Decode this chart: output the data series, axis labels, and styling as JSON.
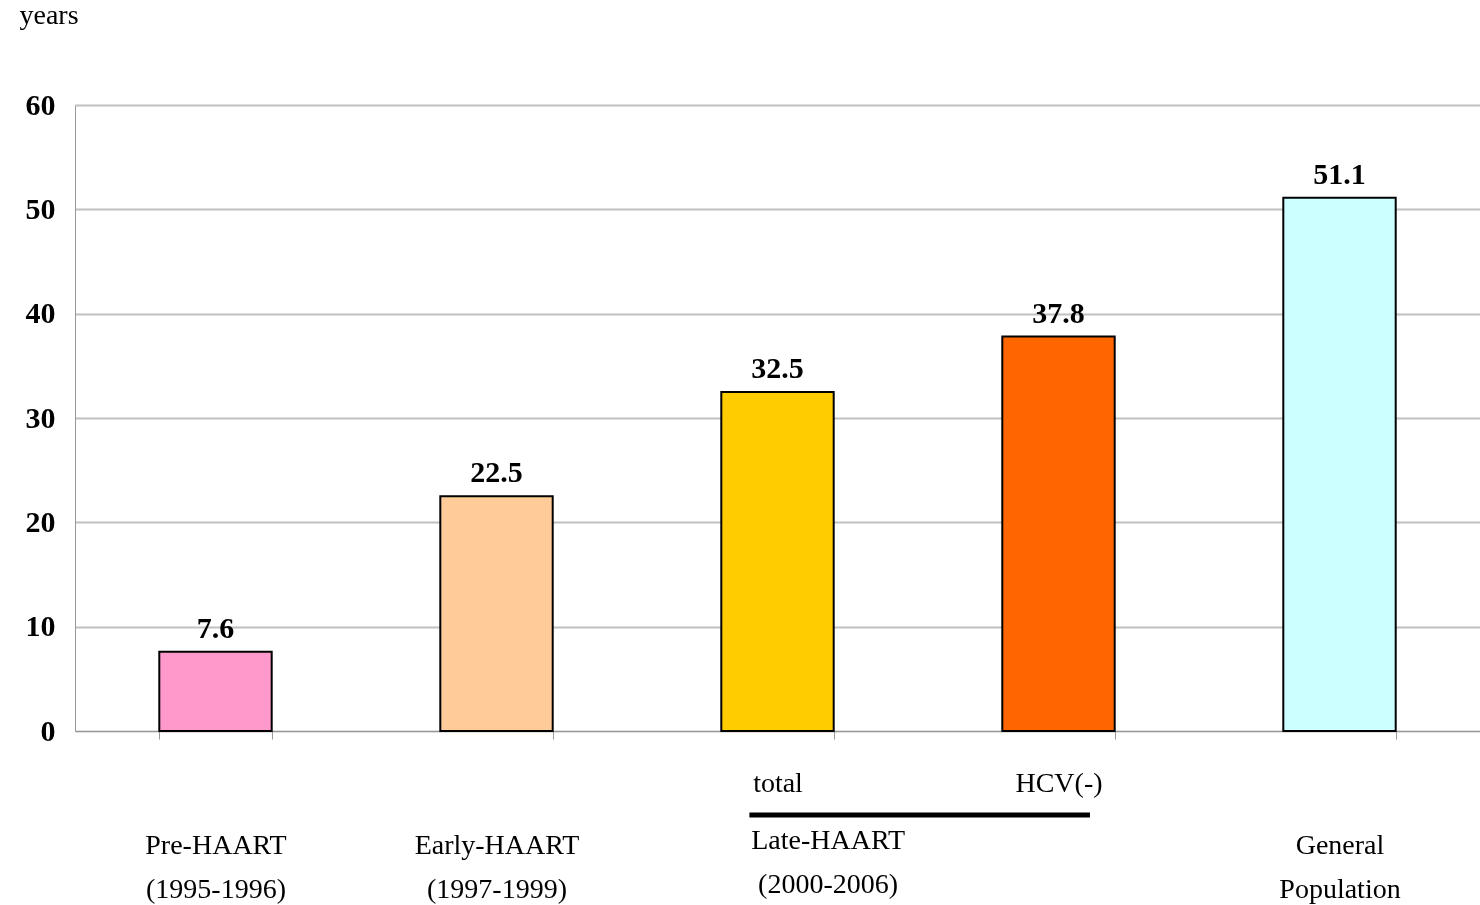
{
  "chart_data": {
    "type": "bar",
    "ylabel": "years",
    "categories": [
      "Pre-HAART\n(1995-1996)",
      "Early-HAART\n(1997-1999)",
      "total",
      "HCV(-)",
      "General\nPopulation"
    ],
    "values": [
      7.6,
      22.5,
      32.5,
      37.8,
      51.1
    ],
    "colors": [
      "#ff99cc",
      "#ffcc99",
      "#ffcc00",
      "#ff6600",
      "#ccffff"
    ],
    "ylim": [
      0,
      60
    ],
    "yticks": [
      0,
      10,
      20,
      30,
      40,
      50,
      60
    ],
    "grid": "y",
    "data_labels": true,
    "annotations": [
      "Late-HAART\n(2000-2006)"
    ]
  }
}
